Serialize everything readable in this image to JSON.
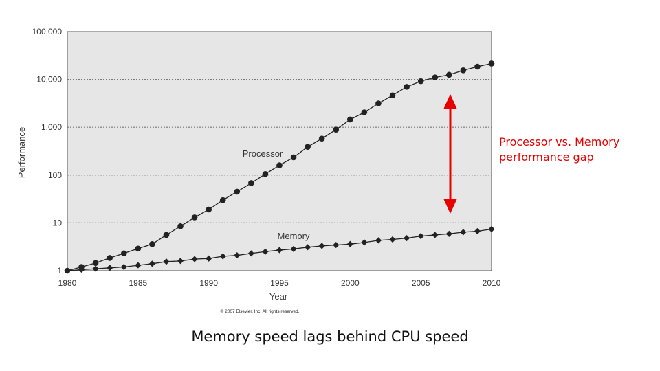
{
  "caption": "Memory speed lags behind CPU speed",
  "gap_annotation": {
    "line1": "Processor vs. Memory",
    "line2": "performance gap",
    "color": "#e60000"
  },
  "copyright": "© 2007 Elsevier, Inc. All rights reserved.",
  "colors": {
    "plot_background": "#e6e6e6",
    "series": "#222222",
    "grid": "#777777"
  },
  "chart_data": {
    "type": "line",
    "xlabel": "Year",
    "ylabel": "Performance",
    "yscale": "log",
    "ylim": [
      1,
      100000
    ],
    "xlim": [
      1980,
      2010
    ],
    "grid": true,
    "x_ticks": [
      "1980",
      "1985",
      "1990",
      "1995",
      "2000",
      "2005",
      "2010"
    ],
    "y_ticks": [
      "1",
      "10",
      "100",
      "1,000",
      "10,000",
      "100,000"
    ],
    "x": [
      1980,
      1981,
      1982,
      1983,
      1984,
      1985,
      1986,
      1987,
      1988,
      1989,
      1990,
      1991,
      1992,
      1993,
      1994,
      1995,
      1996,
      1997,
      1998,
      1999,
      2000,
      2001,
      2002,
      2003,
      2004,
      2005,
      2006,
      2007,
      2008,
      2009,
      2010
    ],
    "series": [
      {
        "name": "Processor",
        "marker": "circle",
        "values": [
          1,
          1.2,
          1.45,
          1.85,
          2.3,
          2.9,
          3.6,
          5.6,
          8.5,
          13,
          19,
          30,
          45,
          68,
          105,
          160,
          235,
          390,
          580,
          890,
          1450,
          2050,
          3150,
          4650,
          7000,
          9200,
          11000,
          12500,
          15500,
          18500,
          21500
        ]
      },
      {
        "name": "Memory",
        "marker": "diamond",
        "values": [
          1,
          1.05,
          1.1,
          1.15,
          1.2,
          1.3,
          1.4,
          1.55,
          1.6,
          1.75,
          1.8,
          2.0,
          2.1,
          2.3,
          2.5,
          2.7,
          2.85,
          3.1,
          3.3,
          3.45,
          3.6,
          3.9,
          4.3,
          4.5,
          4.8,
          5.3,
          5.6,
          5.9,
          6.4,
          6.7,
          7.4
        ]
      }
    ]
  }
}
